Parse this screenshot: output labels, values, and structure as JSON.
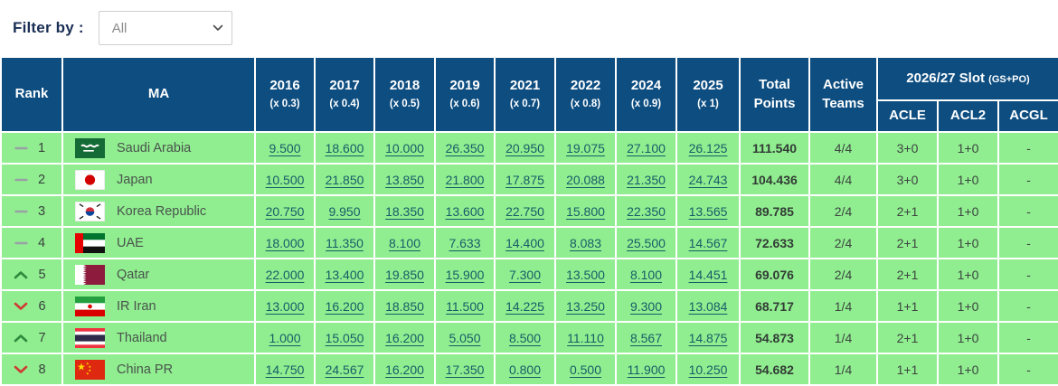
{
  "filter": {
    "label": "Filter by :",
    "selected": "All"
  },
  "table": {
    "headers": {
      "rank": "Rank",
      "ma": "MA",
      "years": [
        {
          "label": "2016",
          "multiplier": "(x 0.3)"
        },
        {
          "label": "2017",
          "multiplier": "(x 0.4)"
        },
        {
          "label": "2018",
          "multiplier": "(x 0.5)"
        },
        {
          "label": "2019",
          "multiplier": "(x 0.6)"
        },
        {
          "label": "2021",
          "multiplier": "(x 0.7)"
        },
        {
          "label": "2022",
          "multiplier": "(x 0.8)"
        },
        {
          "label": "2024",
          "multiplier": "(x 0.9)"
        },
        {
          "label": "2025",
          "multiplier": "(x 1)"
        }
      ],
      "total": "Total Points",
      "active": "Active Teams",
      "slot_label": "2026/27 Slot",
      "slot_note": "(GS+PO)",
      "slot_cols": [
        "ACLE",
        "ACL2",
        "ACGL"
      ]
    },
    "rows": [
      {
        "trend": "same",
        "rank": "1",
        "country": "Saudi Arabia",
        "flag": "sa",
        "scores": [
          "9.500",
          "18.600",
          "10.000",
          "26.350",
          "20.950",
          "19.075",
          "27.100",
          "26.125"
        ],
        "total": "111.540",
        "active": "4/4",
        "acle": "3+0",
        "acl2": "1+0",
        "acgl": "-"
      },
      {
        "trend": "same",
        "rank": "2",
        "country": "Japan",
        "flag": "jp",
        "scores": [
          "10.500",
          "21.850",
          "13.850",
          "21.800",
          "17.875",
          "20.088",
          "21.350",
          "24.743"
        ],
        "total": "104.436",
        "active": "4/4",
        "acle": "3+0",
        "acl2": "1+0",
        "acgl": "-"
      },
      {
        "trend": "same",
        "rank": "3",
        "country": "Korea Republic",
        "flag": "kr",
        "scores": [
          "20.750",
          "9.950",
          "18.350",
          "13.600",
          "22.750",
          "15.800",
          "22.350",
          "13.565"
        ],
        "total": "89.785",
        "active": "2/4",
        "acle": "2+1",
        "acl2": "1+0",
        "acgl": "-"
      },
      {
        "trend": "same",
        "rank": "4",
        "country": "UAE",
        "flag": "ae",
        "scores": [
          "18.000",
          "11.350",
          "8.100",
          "7.633",
          "14.400",
          "8.083",
          "25.500",
          "14.567"
        ],
        "total": "72.633",
        "active": "2/4",
        "acle": "2+1",
        "acl2": "1+0",
        "acgl": "-"
      },
      {
        "trend": "up",
        "rank": "5",
        "country": "Qatar",
        "flag": "qa",
        "scores": [
          "22.000",
          "13.400",
          "19.850",
          "15.900",
          "7.300",
          "13.500",
          "8.100",
          "14.451"
        ],
        "total": "69.076",
        "active": "2/4",
        "acle": "2+1",
        "acl2": "1+0",
        "acgl": "-"
      },
      {
        "trend": "down",
        "rank": "6",
        "country": "IR Iran",
        "flag": "ir",
        "scores": [
          "13.000",
          "16.200",
          "18.850",
          "11.500",
          "14.225",
          "13.250",
          "9.300",
          "13.084"
        ],
        "total": "68.717",
        "active": "1/4",
        "acle": "1+1",
        "acl2": "1+0",
        "acgl": "-"
      },
      {
        "trend": "up",
        "rank": "7",
        "country": "Thailand",
        "flag": "th",
        "scores": [
          "1.000",
          "15.050",
          "16.200",
          "5.050",
          "8.500",
          "11.110",
          "8.567",
          "14.875"
        ],
        "total": "54.873",
        "active": "1/4",
        "acle": "2+1",
        "acl2": "1+0",
        "acgl": "-"
      },
      {
        "trend": "down",
        "rank": "8",
        "country": "China PR",
        "flag": "cn",
        "scores": [
          "14.750",
          "24.567",
          "16.200",
          "17.350",
          "0.800",
          "0.500",
          "11.900",
          "10.250"
        ],
        "total": "54.682",
        "active": "1/4",
        "acle": "1+1",
        "acl2": "1+0",
        "acgl": "-"
      }
    ]
  },
  "colors": {
    "header_bg": "#0d4d80",
    "row_bg": "#90ee90",
    "link": "#175c67",
    "trend_up": "#2e8b3d",
    "trend_down": "#d03a34",
    "trend_same": "#9aa0a6"
  }
}
